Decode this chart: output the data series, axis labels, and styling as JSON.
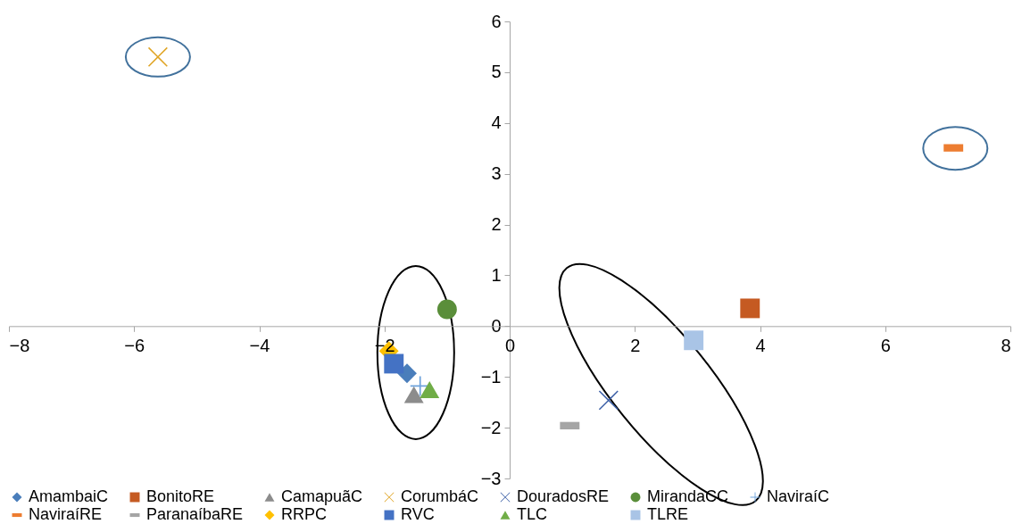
{
  "chart_data": {
    "type": "scatter",
    "xlim": [
      -8,
      8
    ],
    "xticks": [
      -8,
      -6,
      -4,
      -2,
      0,
      2,
      4,
      6,
      8
    ],
    "ylim": [
      -3,
      6
    ],
    "yticks": [
      -3,
      -2,
      -1,
      0,
      1,
      2,
      3,
      4,
      5,
      6
    ],
    "grid": false,
    "legend": "bottom",
    "series": [
      {
        "name": "AmambaiC",
        "color": "#4a7ebb",
        "marker": "diamond",
        "x": [
          -1.64
        ],
        "values": [
          -0.93
        ]
      },
      {
        "name": "BonitoRE",
        "color": "#c55a22",
        "marker": "square",
        "x": [
          3.84
        ],
        "values": [
          0.35
        ]
      },
      {
        "name": "CamapuãC",
        "color": "#8c8c8c",
        "marker": "triangle",
        "x": [
          -1.53
        ],
        "values": [
          -1.35
        ]
      },
      {
        "name": "CorumbáC",
        "color": "#e0a526",
        "marker": "cross",
        "x": [
          -5.62
        ],
        "values": [
          5.3
        ]
      },
      {
        "name": "DouradosRE",
        "color": "#3f62a8",
        "marker": "cross",
        "x": [
          1.58
        ],
        "values": [
          -1.46
        ]
      },
      {
        "name": "MirandaCC",
        "color": "#5a8e3a",
        "marker": "circle",
        "x": [
          -1.0
        ],
        "values": [
          0.33
        ]
      },
      {
        "name": "NaviraíC",
        "color": "#6fa3dc",
        "marker": "cross",
        "x": [
          -1.43
        ],
        "values": [
          -1.18
        ]
      },
      {
        "name": "NaviraíRE",
        "color": "#ed7d31",
        "x": [
          7.09
        ],
        "values": [
          3.51
        ]
      },
      {
        "name": "ParanaíbaRE",
        "color": "#a5a5a5",
        "x": [
          0.96
        ],
        "values": [
          -1.96
        ]
      },
      {
        "name": "RRPC",
        "color": "#ffc000",
        "marker": "diamond",
        "x": [
          -1.93
        ],
        "values": [
          -0.49
        ]
      },
      {
        "name": "RVC",
        "color": "#4472c4",
        "marker": "square",
        "x": [
          -1.85
        ],
        "values": [
          -0.74
        ]
      },
      {
        "name": "TLC",
        "color": "#70ad47",
        "marker": "triangle",
        "x": [
          -1.28
        ],
        "values": [
          -1.25
        ]
      },
      {
        "name": "TLRE",
        "color": "#a9c4e6",
        "marker": "square",
        "x": [
          2.94
        ],
        "values": [
          -0.28
        ]
      }
    ]
  }
}
